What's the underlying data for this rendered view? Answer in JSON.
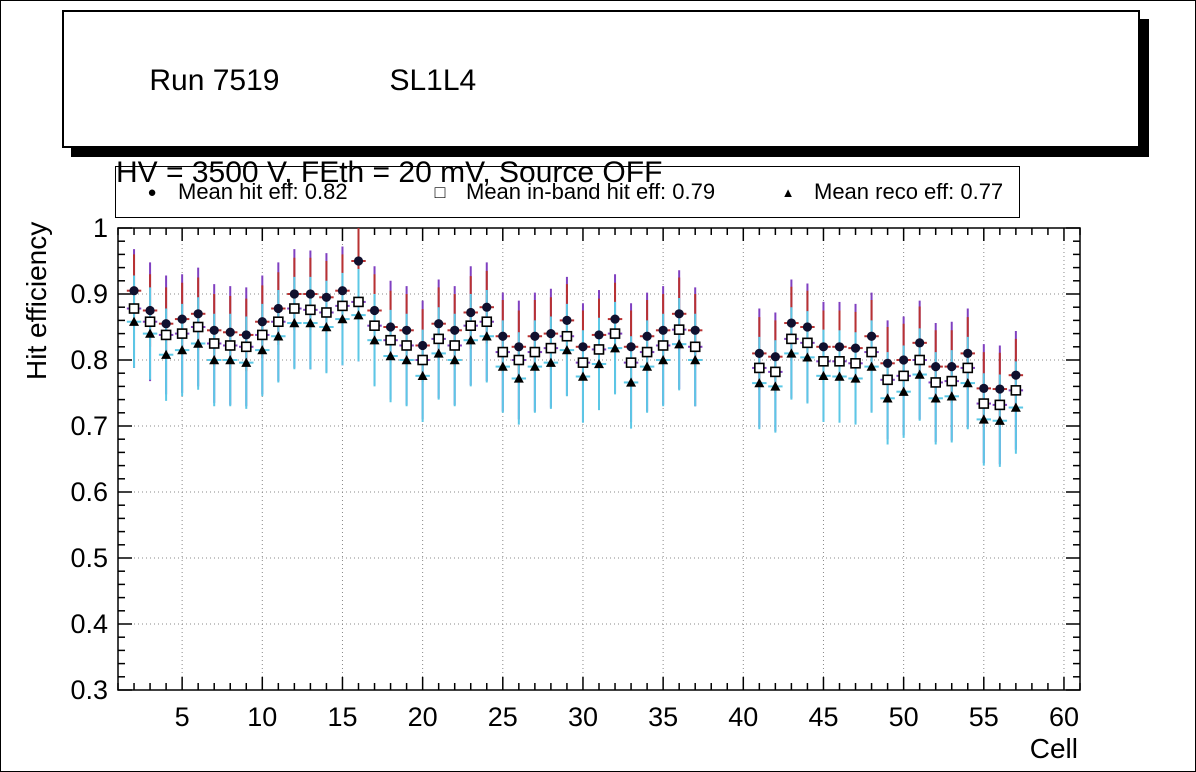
{
  "header": {
    "run_label": "Run 7519",
    "chamber_label": "SL1L4",
    "conditions": "HV = 3500 V, FEth = 20 mV, Source OFF"
  },
  "legend": [
    {
      "marker": "filled-circle",
      "glyph": "●",
      "label": "Mean hit  eff: 0.82"
    },
    {
      "marker": "open-square",
      "glyph": "□",
      "label": "Mean in-band hit eff: 0.79"
    },
    {
      "marker": "filled-triangle",
      "glyph": "▲",
      "label": "Mean reco eff: 0.77"
    }
  ],
  "chart_data": {
    "type": "scatter",
    "title": "",
    "xlabel": "Cell",
    "ylabel": "Hit efficiency",
    "xlim": [
      1,
      61
    ],
    "ylim": [
      0.3,
      1.0
    ],
    "x_ticks": [
      5,
      10,
      15,
      20,
      25,
      30,
      35,
      40,
      45,
      50,
      55,
      60
    ],
    "y_ticks": [
      0.3,
      0.4,
      0.5,
      0.6,
      0.7,
      0.8,
      0.9,
      1
    ],
    "grid": "dotted",
    "legend_position": "top",
    "style": {
      "grid_color": "#888888",
      "frame_color": "#000000",
      "background": "#ffffff"
    },
    "x": [
      2,
      3,
      4,
      5,
      6,
      7,
      8,
      9,
      10,
      11,
      12,
      13,
      14,
      15,
      16,
      17,
      18,
      19,
      20,
      21,
      22,
      23,
      24,
      25,
      26,
      27,
      28,
      29,
      30,
      31,
      32,
      33,
      34,
      35,
      36,
      37,
      41,
      42,
      43,
      44,
      45,
      46,
      47,
      48,
      49,
      50,
      51,
      52,
      53,
      54,
      55,
      56,
      57
    ],
    "series": [
      {
        "name": "Mean hit eff",
        "mean": 0.82,
        "marker": "filled-circle",
        "marker_color": "#10102e",
        "error_color": "#b83232",
        "yerr": 0.055,
        "xerr": 0.45,
        "values": [
          0.905,
          0.875,
          0.855,
          0.862,
          0.87,
          0.845,
          0.842,
          0.838,
          0.858,
          0.878,
          0.9,
          0.9,
          0.895,
          0.905,
          0.95,
          0.875,
          0.85,
          0.845,
          0.822,
          0.855,
          0.845,
          0.872,
          0.88,
          0.836,
          0.82,
          0.836,
          0.84,
          0.86,
          0.82,
          0.838,
          0.862,
          0.82,
          0.836,
          0.845,
          0.87,
          0.845,
          0.81,
          0.805,
          0.856,
          0.85,
          0.82,
          0.82,
          0.818,
          0.836,
          0.795,
          0.8,
          0.826,
          0.79,
          0.79,
          0.81,
          0.757,
          0.756,
          0.777
        ]
      },
      {
        "name": "Mean in-band hit eff",
        "mean": 0.79,
        "marker": "open-square",
        "marker_color": "#ffffff",
        "error_color": "#8040c0",
        "yerr": 0.09,
        "xerr": 0.45,
        "values": [
          0.878,
          0.858,
          0.838,
          0.84,
          0.85,
          0.825,
          0.822,
          0.82,
          0.838,
          0.858,
          0.878,
          0.876,
          0.872,
          0.882,
          0.888,
          0.852,
          0.83,
          0.822,
          0.8,
          0.832,
          0.822,
          0.852,
          0.858,
          0.812,
          0.8,
          0.812,
          0.818,
          0.836,
          0.796,
          0.816,
          0.84,
          0.796,
          0.812,
          0.822,
          0.846,
          0.82,
          0.788,
          0.782,
          0.832,
          0.826,
          0.798,
          0.798,
          0.795,
          0.812,
          0.77,
          0.776,
          0.8,
          0.766,
          0.768,
          0.788,
          0.734,
          0.732,
          0.754
        ]
      },
      {
        "name": "Mean reco eff",
        "mean": 0.77,
        "marker": "filled-triangle",
        "marker_color": "#000000",
        "error_color": "#5cc8e6",
        "yerr": 0.07,
        "xerr": 0.45,
        "values": [
          0.858,
          0.84,
          0.808,
          0.815,
          0.825,
          0.8,
          0.8,
          0.796,
          0.815,
          0.836,
          0.856,
          0.856,
          0.85,
          0.862,
          0.868,
          0.83,
          0.806,
          0.8,
          0.776,
          0.81,
          0.8,
          0.83,
          0.836,
          0.79,
          0.772,
          0.79,
          0.796,
          0.815,
          0.775,
          0.794,
          0.818,
          0.766,
          0.79,
          0.8,
          0.824,
          0.8,
          0.765,
          0.76,
          0.81,
          0.804,
          0.776,
          0.775,
          0.772,
          0.79,
          0.742,
          0.752,
          0.778,
          0.742,
          0.745,
          0.765,
          0.71,
          0.708,
          0.728
        ]
      }
    ]
  }
}
